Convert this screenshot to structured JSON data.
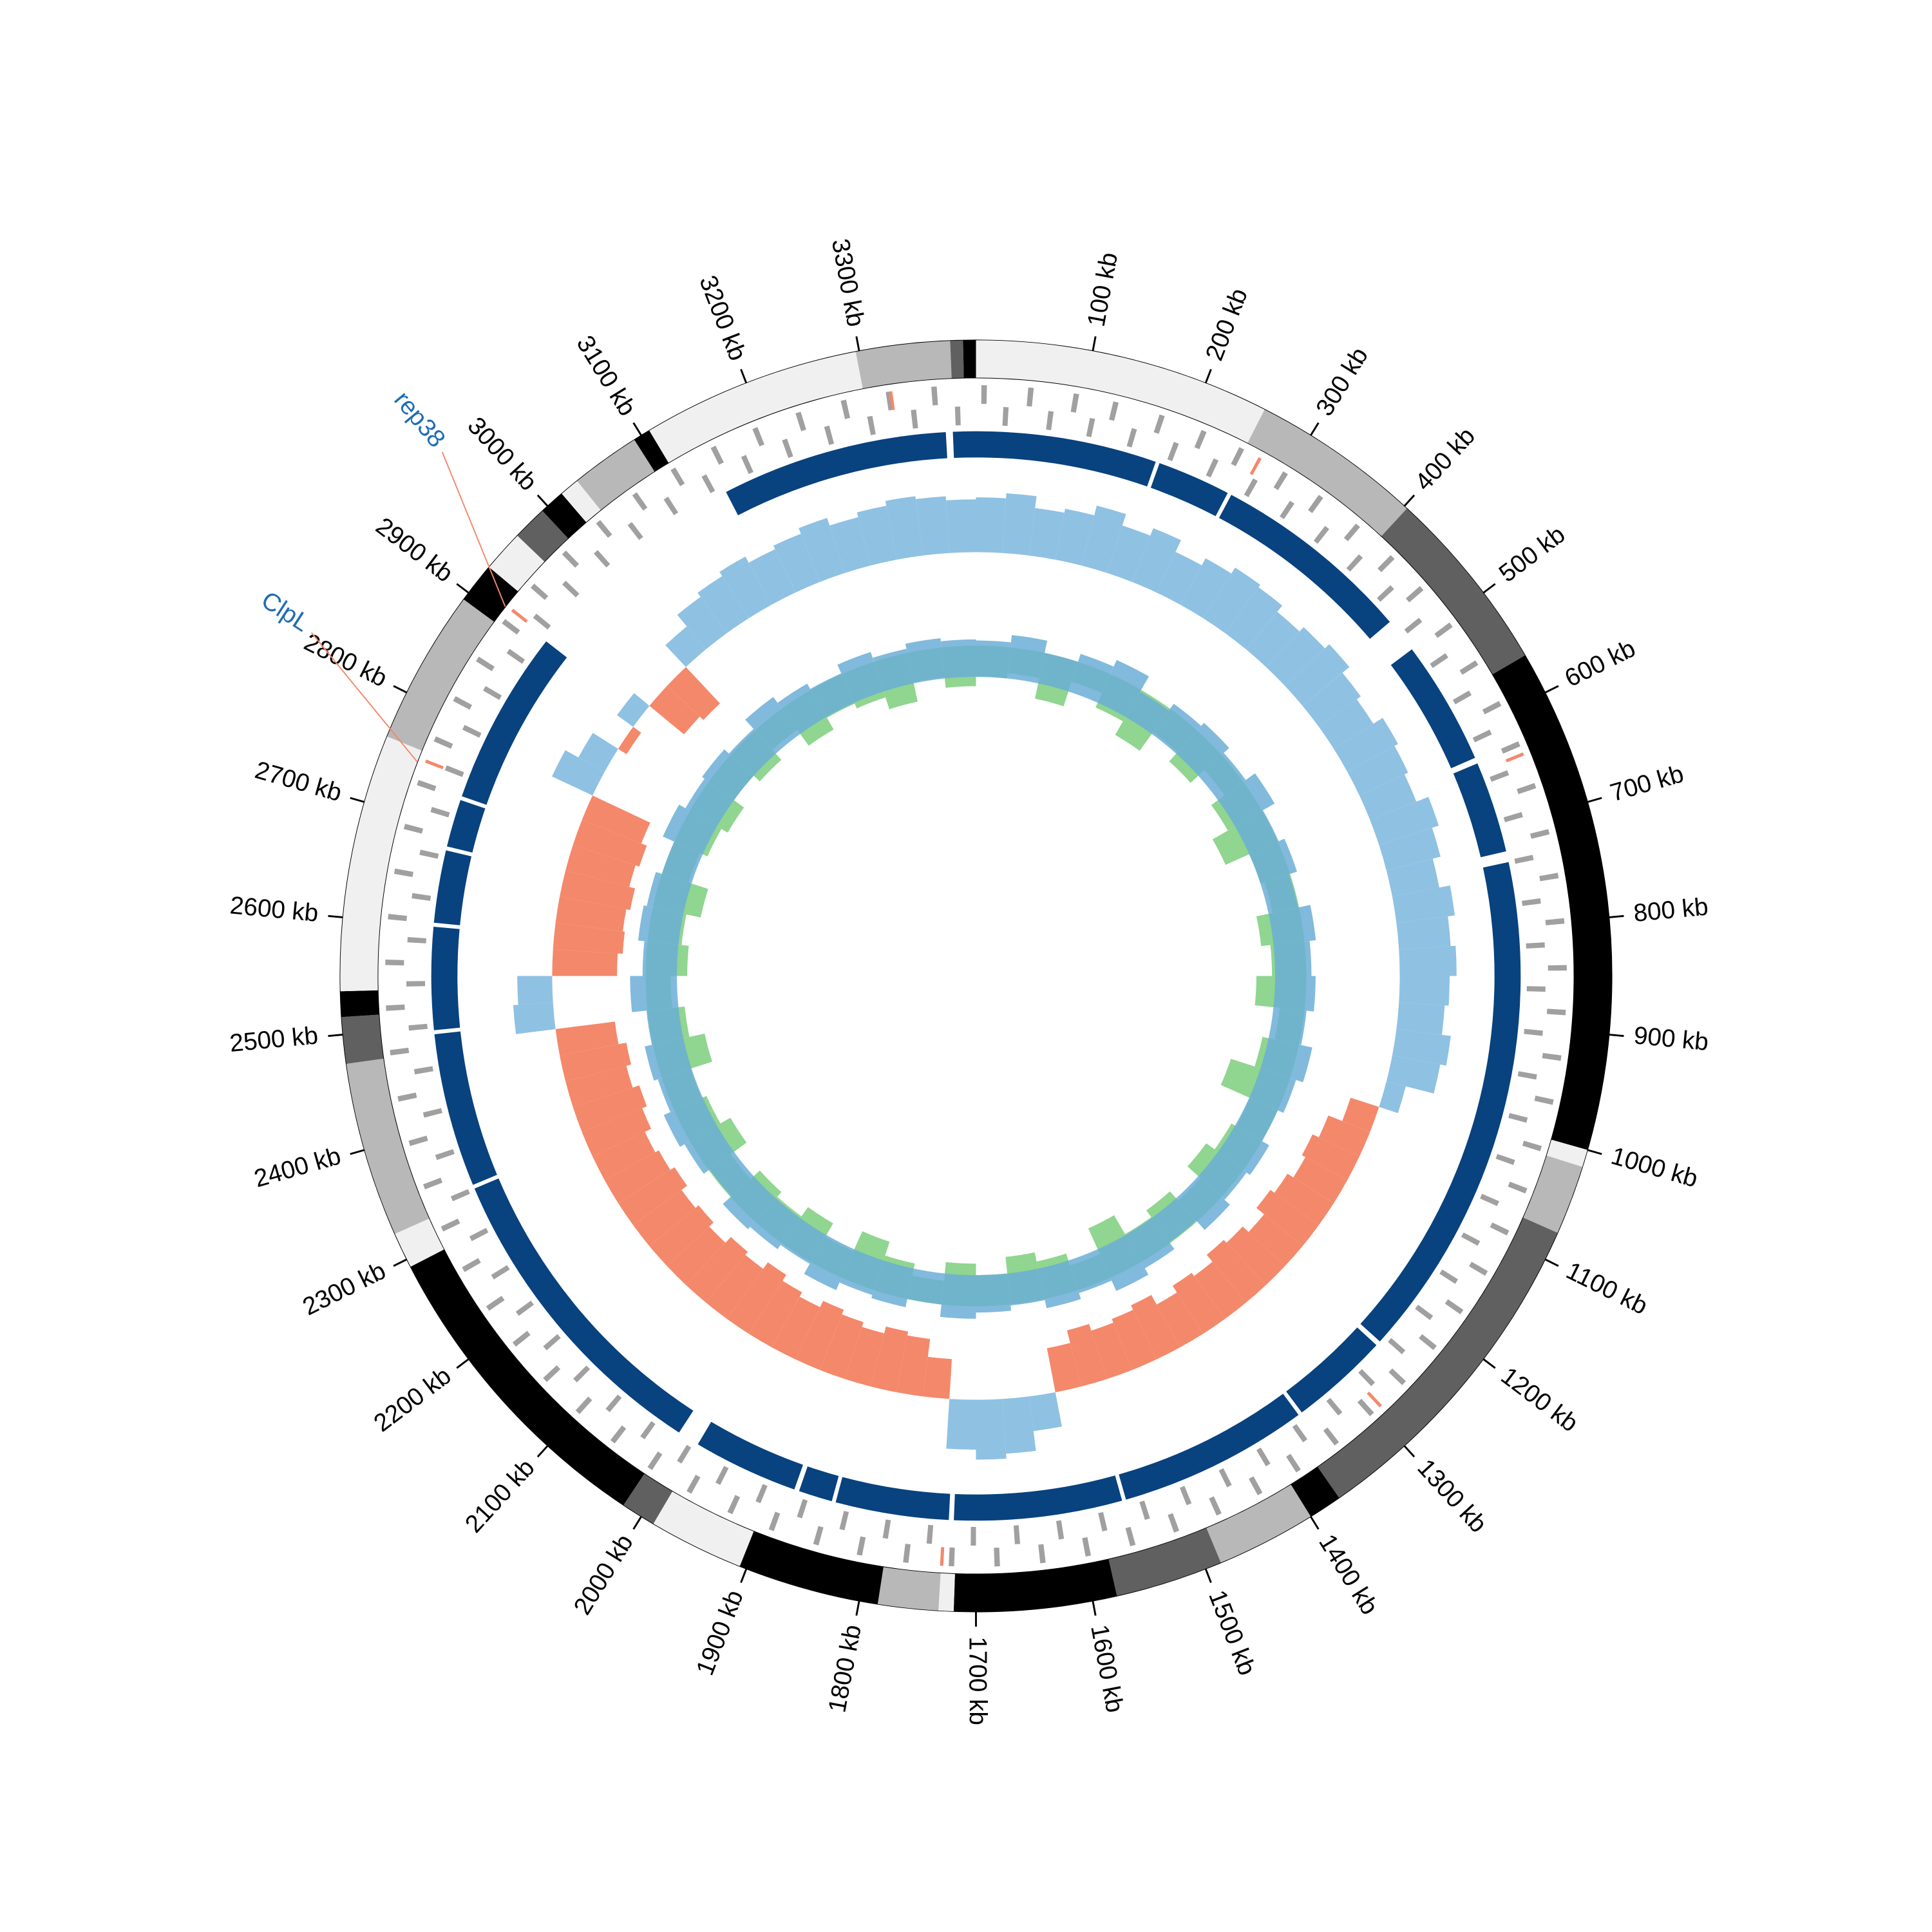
{
  "chart_data": {
    "type": "circular-genome",
    "xlim": [
      0,
      3400
    ],
    "xticks": [
      {
        "value": 100,
        "label": "100 kb"
      },
      {
        "value": 200,
        "label": "200 kb"
      },
      {
        "value": 300,
        "label": "300 kb"
      },
      {
        "value": 400,
        "label": "400 kb"
      },
      {
        "value": 500,
        "label": "500 kb"
      },
      {
        "value": 600,
        "label": "600 kb"
      },
      {
        "value": 700,
        "label": "700 kb"
      },
      {
        "value": 800,
        "label": "800 kb"
      },
      {
        "value": 900,
        "label": "900 kb"
      },
      {
        "value": 1000,
        "label": "1000 kb"
      },
      {
        "value": 1100,
        "label": "1100 kb"
      },
      {
        "value": 1200,
        "label": "1200 kb"
      },
      {
        "value": 1300,
        "label": "1300 kb"
      },
      {
        "value": 1400,
        "label": "1400 kb"
      },
      {
        "value": 1500,
        "label": "1500 kb"
      },
      {
        "value": 1600,
        "label": "1600 kb"
      },
      {
        "value": 1700,
        "label": "1700 kb"
      },
      {
        "value": 1800,
        "label": "1800 kb"
      },
      {
        "value": 1900,
        "label": "1900 kb"
      },
      {
        "value": 2000,
        "label": "2000 kb"
      },
      {
        "value": 2100,
        "label": "2100 kb"
      },
      {
        "value": 2200,
        "label": "2200 kb"
      },
      {
        "value": 2300,
        "label": "2300 kb"
      },
      {
        "value": 2400,
        "label": "2400 kb"
      },
      {
        "value": 2500,
        "label": "2500 kb"
      },
      {
        "value": 2600,
        "label": "2600 kb"
      },
      {
        "value": 2700,
        "label": "2700 kb"
      },
      {
        "value": 2800,
        "label": "2800 kb"
      },
      {
        "value": 2900,
        "label": "2900 kb"
      },
      {
        "value": 3000,
        "label": "3000 kb"
      },
      {
        "value": 3100,
        "label": "3100 kb"
      },
      {
        "value": 3200,
        "label": "3200 kb"
      },
      {
        "value": 3300,
        "label": "3300 kb"
      }
    ],
    "segments": [
      {
        "start": 0,
        "end": 255,
        "color": "#f0f0f0"
      },
      {
        "start": 255,
        "end": 403,
        "color": "#b8b8b8"
      },
      {
        "start": 403,
        "end": 564,
        "color": "#606060"
      },
      {
        "start": 564,
        "end": 1000,
        "color": "#000000"
      },
      {
        "start": 1000,
        "end": 1015,
        "color": "#f0f0f0"
      },
      {
        "start": 1015,
        "end": 1075,
        "color": "#b8b8b8"
      },
      {
        "start": 1075,
        "end": 1371,
        "color": "#606060"
      },
      {
        "start": 1371,
        "end": 1400,
        "color": "#000000"
      },
      {
        "start": 1400,
        "end": 1486,
        "color": "#b8b8b8"
      },
      {
        "start": 1486,
        "end": 1579,
        "color": "#606060"
      },
      {
        "start": 1579,
        "end": 1719,
        "color": "#000000"
      },
      {
        "start": 1719,
        "end": 1732,
        "color": "#f0f0f0"
      },
      {
        "start": 1732,
        "end": 1784,
        "color": "#b8b8b8"
      },
      {
        "start": 1784,
        "end": 1906,
        "color": "#000000"
      },
      {
        "start": 1906,
        "end": 1988,
        "color": "#f0f0f0"
      },
      {
        "start": 1988,
        "end": 2018,
        "color": "#606060"
      },
      {
        "start": 2018,
        "end": 2293,
        "color": "#000000"
      },
      {
        "start": 2293,
        "end": 2324,
        "color": "#f0f0f0"
      },
      {
        "start": 2324,
        "end": 2475,
        "color": "#b8b8b8"
      },
      {
        "start": 2475,
        "end": 2515,
        "color": "#606060"
      },
      {
        "start": 2515,
        "end": 2537,
        "color": "#000000"
      },
      {
        "start": 2537,
        "end": 2759,
        "color": "#f0f0f0"
      },
      {
        "start": 2759,
        "end": 2893,
        "color": "#b8b8b8"
      },
      {
        "start": 2893,
        "end": 2928,
        "color": "#000000"
      },
      {
        "start": 2928,
        "end": 2964,
        "color": "#f0f0f0"
      },
      {
        "start": 2964,
        "end": 2994,
        "color": "#606060"
      },
      {
        "start": 2994,
        "end": 3016,
        "color": "#000000"
      },
      {
        "start": 3016,
        "end": 3033,
        "color": "#f0f0f0"
      },
      {
        "start": 3033,
        "end": 3093,
        "color": "#b8b8b8"
      },
      {
        "start": 3093,
        "end": 3108,
        "color": "#000000"
      },
      {
        "start": 3108,
        "end": 3297,
        "color": "#f0f0f0"
      },
      {
        "start": 3297,
        "end": 3378,
        "color": "#b8b8b8"
      },
      {
        "start": 3378,
        "end": 3389,
        "color": "#606060"
      },
      {
        "start": 3389,
        "end": 3400,
        "color": "#000000"
      }
    ],
    "genes": {
      "color": "#a0a0a0",
      "forward": [
        5,
        48,
        90,
        127,
        171,
        212,
        250,
        296,
        335,
        378,
        421,
        460,
        503,
        545,
        588,
        629,
        670,
        714,
        755,
        797,
        840,
        881,
        923,
        964,
        1008,
        1049,
        1091,
        1133,
        1175,
        1216,
        1259,
        1300,
        1342,
        1385,
        1426,
        1468,
        1510,
        1552,
        1594,
        1636,
        1678,
        1720,
        1762,
        1805,
        1846,
        1889,
        1930,
        1972,
        2014,
        2056,
        2098,
        2140,
        2183,
        2224,
        2266,
        2308,
        2350,
        2392,
        2434,
        2477,
        2518,
        2560,
        2602,
        2644,
        2686,
        2728,
        2771,
        2812,
        2854,
        2896,
        2938,
        2980,
        3022,
        3064,
        3106,
        3148,
        3190,
        3232,
        3275,
        3317,
        3359
      ],
      "reverse": [
        26,
        69,
        109,
        150,
        192,
        233,
        275,
        316,
        357,
        399,
        441,
        482,
        524,
        566,
        608,
        650,
        692,
        734,
        776,
        818,
        860,
        902,
        944,
        986,
        1028,
        1070,
        1112,
        1154,
        1196,
        1238,
        1280,
        1322,
        1364,
        1406,
        1448,
        1490,
        1532,
        1574,
        1616,
        1658,
        1700,
        1742,
        1784,
        1826,
        1868,
        1910,
        1952,
        1994,
        2036,
        2078,
        2120,
        2162,
        2204,
        2246,
        2288,
        2330,
        2372,
        2414,
        2456,
        2498,
        2540,
        2582,
        2624,
        2666,
        2708,
        2750,
        2792,
        2834,
        2876,
        2918,
        2960,
        3002,
        3044,
        3086,
        3128,
        3170,
        3212,
        3254,
        3296,
        3338,
        3380
      ],
      "highlight_color": "#f4886a",
      "highlighted": [
        3320,
        270,
        640,
        1290,
        1730,
        2750,
        2910
      ]
    },
    "blocks_color": "#08427f",
    "blocks": [
      {
        "start": 0,
        "end": 182
      },
      {
        "start": 186,
        "end": 260
      },
      {
        "start": 264,
        "end": 467
      },
      {
        "start": 502,
        "end": 627
      },
      {
        "start": 633,
        "end": 725
      },
      {
        "start": 736,
        "end": 1248
      },
      {
        "start": 1253,
        "end": 1353
      },
      {
        "start": 1357,
        "end": 1549
      },
      {
        "start": 1553,
        "end": 1722
      },
      {
        "start": 1727,
        "end": 1841
      },
      {
        "start": 1845,
        "end": 1879
      },
      {
        "start": 1884,
        "end": 1990
      },
      {
        "start": 2012,
        "end": 2333
      },
      {
        "start": 2337,
        "end": 2492
      },
      {
        "start": 2496,
        "end": 2599
      },
      {
        "start": 2603,
        "end": 2676
      },
      {
        "start": 2680,
        "end": 2728
      },
      {
        "start": 2732,
        "end": 2908
      },
      {
        "start": 3142,
        "end": 3370
      },
      {
        "start": 3377,
        "end": 3400
      }
    ],
    "skew": {
      "ylim": [
        -0.1,
        0.1
      ],
      "positive_color": "#8fc1e3",
      "negative_color": "#f4886a",
      "values": [
        0.055,
        0.06,
        0.048,
        0.052,
        0.062,
        0.05,
        0.058,
        0.045,
        0.053,
        0.06,
        0.057,
        0.049,
        0.055,
        0.061,
        0.052,
        0.047,
        0.058,
        0.054,
        0.05,
        0.063,
        0.056,
        0.048,
        0.059,
        0.052,
        0.057,
        0.05,
        0.046,
        0.055,
        0.049,
        0.02,
        -0.03,
        -0.045,
        -0.052,
        -0.048,
        -0.055,
        -0.06,
        -0.05,
        -0.058,
        -0.062,
        -0.053,
        -0.057,
        -0.049,
        -0.06,
        -0.055,
        -0.051,
        -0.058,
        -0.045,
        0.035,
        0.055,
        0.06,
        0.05,
        -0.04,
        -0.058,
        -0.062,
        -0.055,
        -0.06,
        -0.065,
        -0.058,
        -0.063,
        -0.07,
        -0.062,
        -0.066,
        -0.058,
        -0.064,
        -0.06,
        -0.067,
        -0.062,
        -0.058,
        -0.065,
        -0.07,
        -0.063,
        -0.068,
        -0.06,
        0.04,
        0.035,
        -0.065,
        -0.07,
        -0.068,
        -0.072,
        -0.066,
        -0.07,
        -0.064,
        0.045,
        0.03,
        -0.01,
        0.02,
        -0.045,
        -0.05,
        0.03,
        0.045,
        0.05,
        0.055,
        0.048,
        0.052,
        0.058,
        0.05,
        0.055,
        0.06,
        0.057,
        0.053
      ]
    },
    "content": {
      "ylim": [
        -60,
        60
      ],
      "series": [
        {
          "color": "#7dce7d",
          "values": [
            -30,
            -25,
            -45,
            -20,
            -35,
            -50,
            -28,
            -40,
            -22,
            -38,
            -55,
            -30,
            -26,
            -42,
            -33,
            -48,
            -24,
            -36,
            -60,
            -29,
            -34,
            -44,
            -27,
            -39,
            -31,
            -52,
            -25,
            -37,
            -46,
            -30,
            -41,
            -23,
            -35,
            -49,
            -28,
            -43,
            -32,
            -38,
            -26,
            -45,
            -34,
            -29,
            -51,
            -36,
            -24,
            -40,
            -33,
            -47,
            -27,
            -35,
            -42,
            -30,
            -38,
            -25,
            -44,
            -31,
            -36,
            -48,
            -29,
            -39
          ]
        },
        {
          "color": "#6baed6",
          "values": [
            35,
            42,
            30,
            38,
            45,
            28,
            36,
            40,
            33,
            44,
            31,
            37,
            29,
            41,
            35,
            39,
            32,
            43,
            36,
            30,
            38,
            34,
            41,
            29,
            37,
            44,
            33,
            39,
            31,
            36,
            42,
            30,
            38,
            35,
            43,
            32,
            37,
            40,
            29,
            36,
            41,
            34,
            38,
            31,
            45,
            33,
            39,
            36,
            30,
            42,
            35,
            38,
            32,
            44,
            37,
            31,
            40,
            34,
            39,
            36
          ]
        }
      ]
    },
    "annotations": [
      {
        "label": "rep38",
        "position": 2910
      },
      {
        "label": "ClpL",
        "position": 2748
      }
    ],
    "annotation_color": "#1f6db5",
    "annotation_line_color": "#f4886a"
  }
}
